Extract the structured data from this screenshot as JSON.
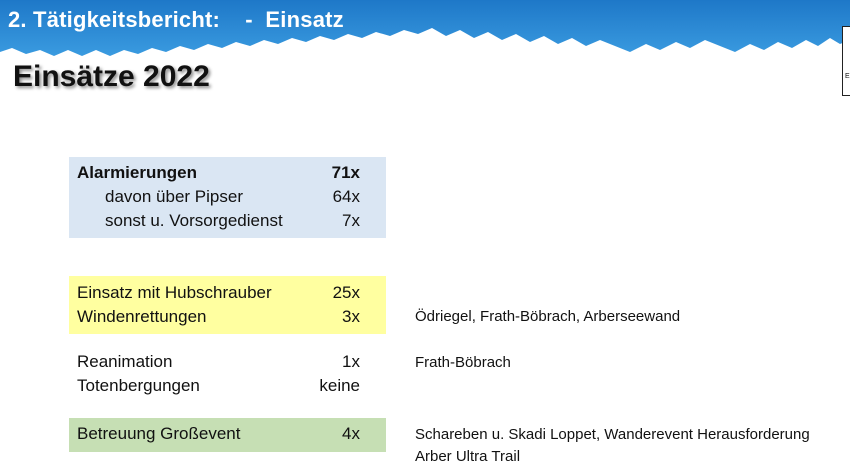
{
  "header": {
    "title": "2. Tätigkeitsbericht:    -  Einsatz",
    "colors": {
      "banner": "#2f8fd6",
      "banner_dark": "#1f6fb8"
    }
  },
  "heading": "Einsätze 2022",
  "alarm": {
    "color": "#dae6f3",
    "rows": [
      {
        "label": "Alarmierungen",
        "value": "71x"
      },
      {
        "label": "davon über Pipser",
        "value": "64x"
      },
      {
        "label": "sonst u. Vorsorgedienst",
        "value": "7x"
      }
    ]
  },
  "heli": {
    "color": "#ffffa0",
    "rows": [
      {
        "label": "Einsatz mit Hubschrauber",
        "value": "25x"
      },
      {
        "label": "Windenrettungen",
        "value": "3x"
      }
    ],
    "note": "Ödriegel, Frath-Böbrach, Arberseewand"
  },
  "medical": {
    "rows": [
      {
        "label": "Reanimation",
        "value": "1x"
      },
      {
        "label": "Totenbergungen",
        "value": "keine"
      }
    ],
    "note": "Frath-Böbrach"
  },
  "event": {
    "color": "#c6dfb4",
    "rows": [
      {
        "label": "Betreuung Großevent",
        "value": "4x"
      }
    ],
    "note_line1": "Schareben u. Skadi Loppet, Wanderevent Herausforderung",
    "note_line2": "Arber Ultra Trail"
  },
  "logo_letter": "E"
}
